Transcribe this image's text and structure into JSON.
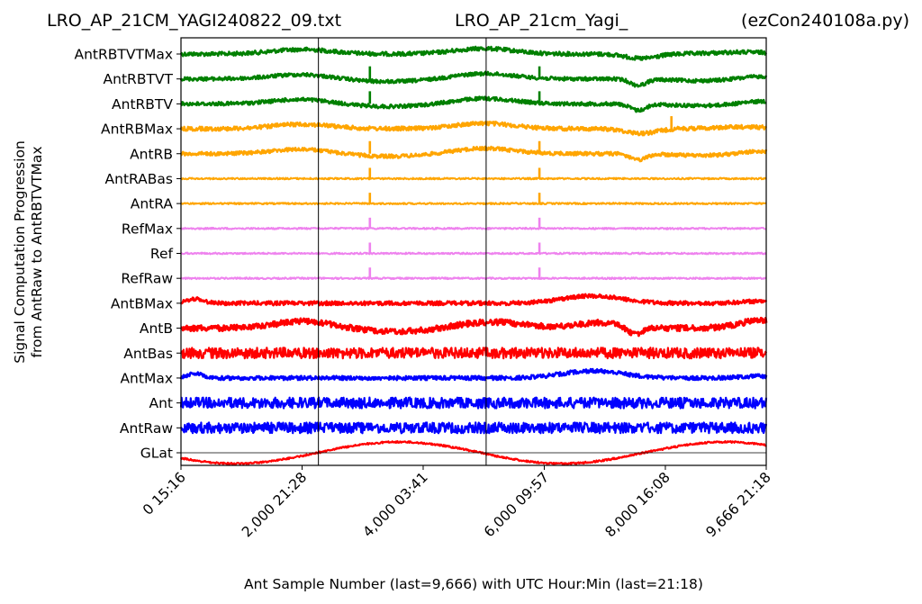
{
  "chart_data": {
    "type": "line",
    "title_left": "LRO_AP_21CM_YAGI240822_09.txt",
    "title_center": "LRO_AP_21cm_Yagi_",
    "title_right": "(ezCon240108a.py)",
    "xlabel": "Ant Sample Number (last=9,666) with UTC Hour:Min (last=21:18)",
    "ylabel_line1": "Signal Computation Progression",
    "ylabel_line2": "from AntRaw to AntRBTVTMax",
    "xlim": [
      0,
      9666
    ],
    "x_ticks": [
      {
        "value": 0,
        "label": "0  15:16"
      },
      {
        "value": 2000,
        "label": "2,000  21:28"
      },
      {
        "value": 4000,
        "label": "4,000  03:41"
      },
      {
        "value": 6000,
        "label": "6,000  09:57"
      },
      {
        "value": 8000,
        "label": "8,000  16:08"
      },
      {
        "value": 9666,
        "label": "9,666  21:18"
      }
    ],
    "vertical_lines": [
      2270,
      5040
    ],
    "gridlines": false,
    "series": [
      {
        "name": "AntRBTVTMax",
        "color": "#008000",
        "style": "smooth_noisy",
        "spikes": []
      },
      {
        "name": "AntRBTVT",
        "color": "#008000",
        "style": "smooth_dip",
        "spikes": [
          3120,
          5920
        ]
      },
      {
        "name": "AntRBTV",
        "color": "#008000",
        "style": "smooth_dip",
        "spikes": [
          3120,
          5920
        ]
      },
      {
        "name": "AntRBMax",
        "color": "#ffa500",
        "style": "smooth_noisy",
        "spikes": [
          8100
        ]
      },
      {
        "name": "AntRB",
        "color": "#ffa500",
        "style": "smooth_dip",
        "spikes": [
          3120,
          5920
        ]
      },
      {
        "name": "AntRABas",
        "color": "#ffa500",
        "style": "flat",
        "spikes": [
          3120,
          5920
        ]
      },
      {
        "name": "AntRA",
        "color": "#ffa500",
        "style": "flat",
        "spikes": [
          3120,
          5920
        ]
      },
      {
        "name": "RefMax",
        "color": "#ee82ee",
        "style": "flat",
        "spikes": [
          3120,
          5920
        ]
      },
      {
        "name": "Ref",
        "color": "#ee82ee",
        "style": "flat",
        "spikes": [
          3120,
          5920
        ]
      },
      {
        "name": "RefRaw",
        "color": "#ee82ee",
        "style": "flat",
        "spikes": [
          3120,
          5920
        ]
      },
      {
        "name": "AntBMax",
        "color": "#ff0000",
        "style": "bmax",
        "spikes": []
      },
      {
        "name": "AntB",
        "color": "#ff0000",
        "style": "smooth_dip_big",
        "spikes": []
      },
      {
        "name": "AntBas",
        "color": "#ff0000",
        "style": "noise",
        "spikes": []
      },
      {
        "name": "AntMax",
        "color": "#0000ff",
        "style": "bmax",
        "spikes": []
      },
      {
        "name": "Ant",
        "color": "#0000ff",
        "style": "noise",
        "spikes": []
      },
      {
        "name": "AntRaw",
        "color": "#0000ff",
        "style": "noise",
        "spikes": []
      },
      {
        "name": "GLat",
        "color": "#ff0000",
        "style": "glat",
        "spikes": []
      }
    ]
  }
}
